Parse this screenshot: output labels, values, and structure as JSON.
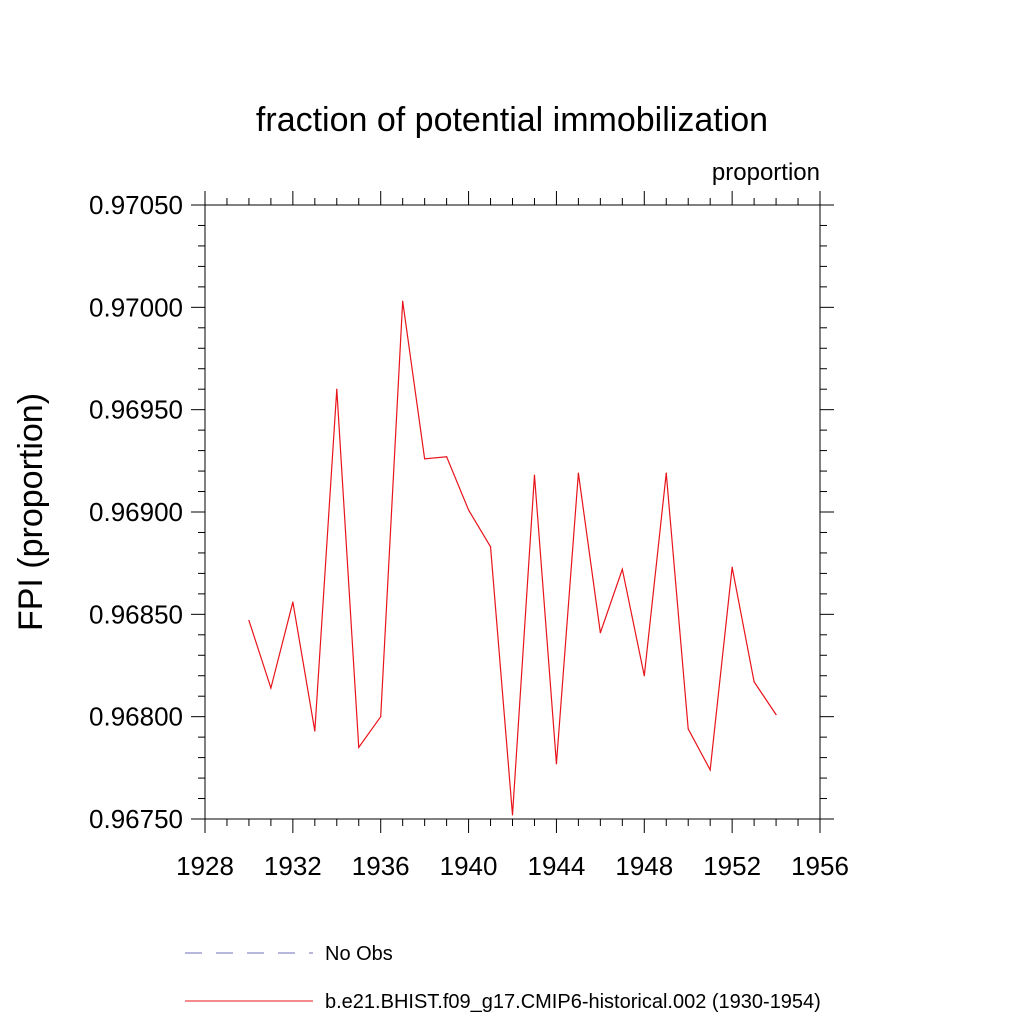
{
  "chart_data": {
    "type": "line",
    "title": "fraction of potential immobilization",
    "subtitle_right": "proportion",
    "ylabel": "FPI  (proportion)",
    "xlabel": "",
    "xlim": [
      1928,
      1956
    ],
    "ylim": [
      0.9675,
      0.9705
    ],
    "x_ticks": [
      1928,
      1932,
      1936,
      1940,
      1944,
      1948,
      1952,
      1956
    ],
    "y_ticks": [
      0.9675,
      0.968,
      0.9685,
      0.969,
      0.9695,
      0.97,
      0.9705
    ],
    "x_tick_labels": [
      "1928",
      "1932",
      "1936",
      "1940",
      "1944",
      "1948",
      "1952",
      "1956"
    ],
    "y_tick_labels": [
      "0.96750",
      "0.96800",
      "0.96850",
      "0.96900",
      "0.96950",
      "0.97000",
      "0.97050"
    ],
    "grid": false,
    "legend_position": "bottom",
    "series": [
      {
        "name": "b.e21.BHIST.f09_g17.CMIP6-historical.002 (1930-1954)",
        "color": "#e8141b",
        "style": "solid",
        "x": [
          1930,
          1931,
          1932,
          1933,
          1934,
          1935,
          1936,
          1937,
          1938,
          1939,
          1940,
          1941,
          1942,
          1943,
          1944,
          1945,
          1946,
          1947,
          1948,
          1949,
          1950,
          1951,
          1952,
          1953,
          1954
        ],
        "y": [
          0.96847,
          0.96814,
          0.96856,
          0.96793,
          0.9696,
          0.96785,
          0.968,
          0.97003,
          0.96926,
          0.96927,
          0.96901,
          0.96883,
          0.96752,
          0.96918,
          0.96777,
          0.96919,
          0.96841,
          0.96872,
          0.9682,
          0.96919,
          0.96794,
          0.96774,
          0.96873,
          0.96817,
          0.96801
        ]
      }
    ],
    "legend": [
      {
        "label": "No Obs",
        "color": "#6f6fb8",
        "style": "dashed"
      },
      {
        "label": "b.e21.BHIST.f09_g17.CMIP6-historical.002 (1930-1954)",
        "color": "#e8141b",
        "style": "solid"
      }
    ]
  }
}
